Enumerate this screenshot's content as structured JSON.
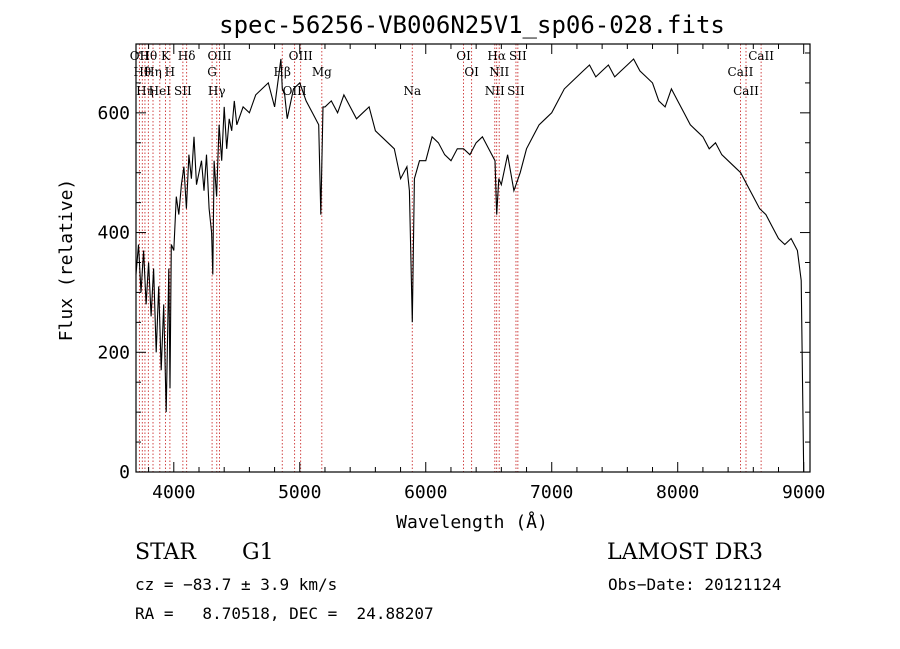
{
  "chart_data": {
    "type": "line",
    "title": "spec-56256-VB006N25V1_sp06-028.fits",
    "xlabel": "Wavelength (Å)",
    "ylabel": "Flux (relative)",
    "xlim": [
      3700,
      9050
    ],
    "ylim": [
      0,
      715
    ],
    "xticks": [
      4000,
      5000,
      6000,
      7000,
      8000,
      9000
    ],
    "yticks": [
      0,
      200,
      400,
      600
    ],
    "grid": false,
    "series": [
      {
        "x": [
          3700,
          3720,
          3740,
          3760,
          3780,
          3800,
          3820,
          3840,
          3860,
          3880,
          3900,
          3920,
          3940,
          3960,
          3970,
          3980,
          4000,
          4020,
          4040,
          4060,
          4080,
          4100,
          4120,
          4140,
          4160,
          4180,
          4200,
          4220,
          4240,
          4260,
          4280,
          4300,
          4310,
          4320,
          4340,
          4360,
          4380,
          4400,
          4420,
          4440,
          4460,
          4480,
          4500,
          4550,
          4600,
          4650,
          4700,
          4750,
          4800,
          4850,
          4861,
          4880,
          4900,
          4950,
          5000,
          5050,
          5100,
          5150,
          5167,
          5184,
          5200,
          5250,
          5300,
          5350,
          5400,
          5450,
          5500,
          5550,
          5600,
          5650,
          5700,
          5750,
          5800,
          5850,
          5870,
          5893,
          5910,
          5950,
          6000,
          6050,
          6100,
          6150,
          6200,
          6250,
          6300,
          6350,
          6400,
          6450,
          6500,
          6550,
          6563,
          6580,
          6600,
          6650,
          6700,
          6750,
          6800,
          6850,
          6900,
          6950,
          7000,
          7050,
          7100,
          7150,
          7200,
          7250,
          7300,
          7350,
          7400,
          7450,
          7500,
          7550,
          7600,
          7650,
          7700,
          7750,
          7800,
          7850,
          7900,
          7950,
          8000,
          8050,
          8100,
          8150,
          8200,
          8250,
          8300,
          8350,
          8400,
          8450,
          8500,
          8550,
          8600,
          8650,
          8700,
          8750,
          8800,
          8850,
          8900,
          8950,
          8980,
          9000
        ],
        "y": [
          330,
          380,
          300,
          370,
          280,
          350,
          260,
          340,
          200,
          310,
          170,
          280,
          100,
          340,
          140,
          380,
          370,
          460,
          430,
          480,
          510,
          440,
          530,
          490,
          560,
          480,
          500,
          520,
          470,
          530,
          440,
          400,
          330,
          520,
          460,
          580,
          520,
          610,
          540,
          590,
          570,
          620,
          580,
          610,
          600,
          630,
          640,
          650,
          610,
          690,
          640,
          630,
          590,
          640,
          650,
          620,
          600,
          580,
          430,
          610,
          610,
          620,
          600,
          630,
          610,
          590,
          600,
          610,
          570,
          560,
          550,
          540,
          490,
          510,
          470,
          250,
          490,
          520,
          520,
          560,
          550,
          530,
          520,
          540,
          540,
          530,
          550,
          560,
          540,
          520,
          430,
          490,
          480,
          530,
          470,
          500,
          540,
          560,
          580,
          590,
          600,
          620,
          640,
          650,
          660,
          670,
          680,
          660,
          670,
          680,
          660,
          670,
          680,
          690,
          670,
          660,
          650,
          620,
          610,
          640,
          620,
          600,
          580,
          570,
          560,
          540,
          550,
          530,
          520,
          510,
          500,
          480,
          460,
          440,
          430,
          410,
          390,
          380,
          390,
          370,
          320,
          0
        ]
      }
    ],
    "lines": [
      {
        "x": 3727,
        "label": "OII"
      },
      {
        "x": 3750,
        "label": "Hθ"
      },
      {
        "x": 3771,
        "label": "Hη"
      },
      {
        "x": 3798,
        "label": "Hθ"
      },
      {
        "x": 3835,
        "label": "Hη"
      },
      {
        "x": 3889,
        "label": "HeI"
      },
      {
        "x": 3934,
        "label": "K"
      },
      {
        "x": 3969,
        "label": "H"
      },
      {
        "x": 4072,
        "label": "SII"
      },
      {
        "x": 4102,
        "label": "Hδ"
      },
      {
        "x": 4304,
        "label": "G"
      },
      {
        "x": 4341,
        "label": "Hγ"
      },
      {
        "x": 4363,
        "label": "OIII"
      },
      {
        "x": 4861,
        "label": "Hβ"
      },
      {
        "x": 4959,
        "label": "OIII"
      },
      {
        "x": 5007,
        "label": "OIII"
      },
      {
        "x": 5175,
        "label": "Mg"
      },
      {
        "x": 5893,
        "label": "Na"
      },
      {
        "x": 6300,
        "label": "OI"
      },
      {
        "x": 6364,
        "label": "OI"
      },
      {
        "x": 6548,
        "label": "NII"
      },
      {
        "x": 6563,
        "label": "Hα"
      },
      {
        "x": 6583,
        "label": "NII"
      },
      {
        "x": 6716,
        "label": "SII"
      },
      {
        "x": 6731,
        "label": "SII"
      },
      {
        "x": 8498,
        "label": "CaII"
      },
      {
        "x": 8542,
        "label": "CaII"
      },
      {
        "x": 8662,
        "label": "CaII"
      }
    ]
  },
  "info": {
    "class": "STAR",
    "subclass": "G1",
    "survey": "LAMOST DR3",
    "cz": "cz = −83.7 ± 3.9 km/s",
    "obs_date": "Obs−Date: 20121124",
    "coords": "RA =   8.70518, DEC =  24.88207"
  },
  "colors": {
    "line_marker": "#cc3333",
    "spectrum": "#000000"
  }
}
